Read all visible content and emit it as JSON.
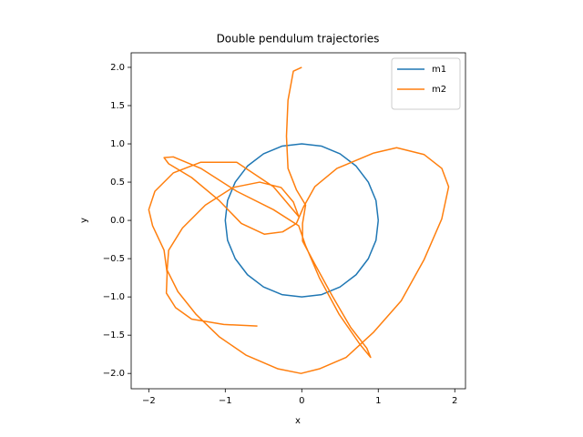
{
  "chart_data": {
    "type": "line",
    "title": "Double pendulum trajectories",
    "xlabel": "x",
    "ylabel": "y",
    "xlim": [
      -2.23,
      2.14
    ],
    "ylim": [
      -2.2,
      2.19
    ],
    "xticks": [
      {
        "value": -2,
        "label": "−2"
      },
      {
        "value": -1,
        "label": "−1"
      },
      0,
      1,
      2
    ],
    "yticks": [
      {
        "value": -2,
        "label": "−2.0"
      },
      {
        "value": -1.5,
        "label": "−1.5"
      },
      {
        "value": -1,
        "label": "−1.0"
      },
      {
        "value": -0.5,
        "label": "−0.5"
      },
      {
        "value": 0,
        "label": "0.0"
      },
      0.5,
      {
        "value": 1,
        "label": "1.0"
      },
      1.5,
      {
        "value": 2,
        "label": "2.0"
      }
    ],
    "grid": false,
    "legend": "upper right",
    "aspect": "equal",
    "series": [
      {
        "name": "m1",
        "color": "#1f77b4",
        "x": [
          1,
          0.97,
          0.87,
          0.71,
          0.5,
          0.26,
          0,
          -0.26,
          -0.5,
          -0.71,
          -0.87,
          -0.97,
          -1,
          -0.97,
          -0.87,
          -0.71,
          -0.5,
          -0.26,
          0,
          0.26,
          0.5,
          0.71,
          0.87,
          0.97,
          1
        ],
        "values": [
          0,
          0.26,
          0.5,
          0.71,
          0.87,
          0.97,
          1,
          0.97,
          0.87,
          0.71,
          0.5,
          0.26,
          0,
          -0.26,
          -0.5,
          -0.71,
          -0.87,
          -0.97,
          -1,
          -0.97,
          -0.87,
          -0.71,
          -0.5,
          -0.26,
          0
        ]
      },
      {
        "name": "m2",
        "color": "#ff7f0e",
        "x": [
          0,
          -0.11,
          -0.18,
          -0.2,
          -0.18,
          -0.07,
          0.05,
          0.01,
          0.01,
          0.17,
          0.4,
          0.64,
          0.85,
          0.9,
          0.76,
          0.49,
          0.23,
          0.05,
          -0.04,
          -0.37,
          -0.85,
          -1.32,
          -1.68,
          -1.8,
          -1.74,
          -1.44,
          -1.08,
          -0.79,
          -0.49,
          -0.25,
          -0.07,
          0.02,
          0.17,
          0.46,
          0.94,
          1.24,
          1.6,
          1.83,
          1.92,
          1.83,
          1.6,
          1.3,
          0.94,
          0.58,
          0.23,
          -0.01,
          -0.31,
          -0.73,
          -1.08,
          -1.38,
          -1.62,
          -1.76,
          -1.74,
          -1.56,
          -1.26,
          -0.9,
          -0.55,
          -0.27,
          -0.11,
          -0.04,
          -0.37,
          -0.85,
          -1.32,
          -1.68,
          -1.92,
          -2,
          -1.95,
          -1.8,
          -1.76,
          -1.77,
          -1.65,
          -1.44,
          -1.02,
          -0.58
        ],
        "values": [
          2,
          1.95,
          1.57,
          1.1,
          0.68,
          0.4,
          0.2,
          -0.04,
          -0.27,
          -0.57,
          -0.99,
          -1.4,
          -1.67,
          -1.79,
          -1.62,
          -1.23,
          -0.75,
          -0.33,
          -0.07,
          0.14,
          0.38,
          0.68,
          0.83,
          0.82,
          0.74,
          0.56,
          0.26,
          -0.04,
          -0.18,
          -0.15,
          -0.04,
          0.17,
          0.44,
          0.68,
          0.88,
          0.95,
          0.86,
          0.68,
          0.44,
          0.02,
          -0.51,
          -1.05,
          -1.46,
          -1.79,
          -1.94,
          -2,
          -1.94,
          -1.76,
          -1.52,
          -1.23,
          -0.93,
          -0.65,
          -0.39,
          -0.1,
          0.2,
          0.43,
          0.5,
          0.43,
          0.24,
          0.05,
          0.44,
          0.76,
          0.76,
          0.62,
          0.38,
          0.14,
          -0.07,
          -0.39,
          -0.69,
          -0.95,
          -1.14,
          -1.29,
          -1.36,
          -1.38
        ]
      }
    ]
  }
}
